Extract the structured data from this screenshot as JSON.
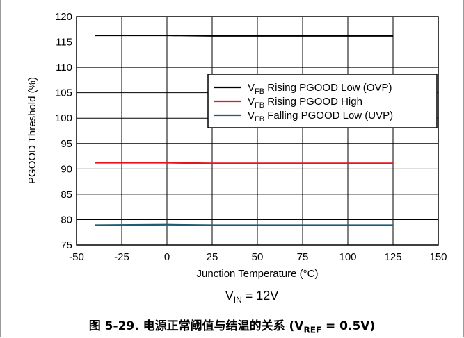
{
  "chart_data": {
    "type": "line",
    "xlabel": "Junction Temperature (°C)",
    "ylabel": "PGOOD Threshold (%)",
    "xlim": [
      -50,
      150
    ],
    "ylim": [
      75,
      120
    ],
    "xticks": [
      -50,
      -25,
      0,
      25,
      50,
      75,
      100,
      125,
      150
    ],
    "yticks": [
      75,
      80,
      85,
      90,
      95,
      100,
      105,
      110,
      115,
      120
    ],
    "grid": true,
    "legend_position": "right",
    "series": [
      {
        "name": "V_FB Rising PGOOD Low (OVP)",
        "name_main": "V",
        "name_sub": "FB",
        "name_rest": " Rising PGOOD Low (OVP)",
        "color": "#000000",
        "x": [
          -40,
          0,
          25,
          50,
          75,
          100,
          125
        ],
        "y": [
          116.3,
          116.3,
          116.2,
          116.2,
          116.2,
          116.2,
          116.2
        ]
      },
      {
        "name": "V_FB Rising PGOOD High",
        "name_main": "V",
        "name_sub": "FB",
        "name_rest": " Rising PGOOD High",
        "color": "#e8141c",
        "x": [
          -40,
          0,
          25,
          50,
          75,
          100,
          125
        ],
        "y": [
          91.2,
          91.2,
          91.1,
          91.1,
          91.1,
          91.1,
          91.1
        ]
      },
      {
        "name": "V_FB Falling PGOOD Low (UVP)",
        "name_main": "V",
        "name_sub": "FB",
        "name_rest": " Falling PGOOD Low (UVP)",
        "color": "#1f5c75",
        "x": [
          -40,
          0,
          25,
          50,
          75,
          100,
          125
        ],
        "y": [
          78.9,
          79.0,
          78.9,
          78.9,
          78.9,
          78.9,
          78.9
        ]
      }
    ],
    "annotation": {
      "main": "V",
      "sub": "IN",
      "rest": " = 12V"
    }
  },
  "caption": {
    "prefix": "图 5-29. 电源正常阈值与结温的关系 (V",
    "sub": "REF",
    "suffix": " = 0.5V)"
  }
}
